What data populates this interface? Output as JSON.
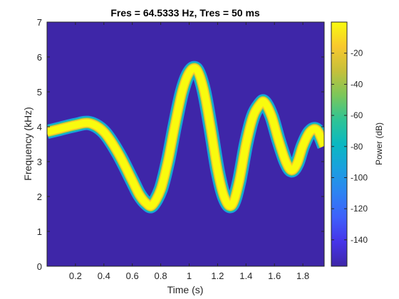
{
  "chart_data": {
    "type": "heatmap",
    "title": "Fres = 64.5333 Hz, Tres = 50 ms",
    "xlabel": "Time (s)",
    "ylabel": "Frequency (kHz)",
    "xlim": [
      0,
      1.95
    ],
    "ylim": [
      0,
      7
    ],
    "x_ticks": [
      0.2,
      0.4,
      0.6,
      0.8,
      1,
      1.2,
      1.4,
      1.6,
      1.8
    ],
    "x_tick_labels": [
      "0.2",
      "0.4",
      "0.6",
      "0.8",
      "1",
      "1.2",
      "1.4",
      "1.6",
      "1.8"
    ],
    "y_ticks": [
      0,
      1,
      2,
      3,
      4,
      5,
      6,
      7
    ],
    "y_tick_labels": [
      "0",
      "1",
      "2",
      "3",
      "4",
      "5",
      "6",
      "7"
    ],
    "colorbar": {
      "label": "Power (dB)",
      "range": [
        -157,
        0
      ],
      "ticks": [
        -140,
        -120,
        -100,
        -80,
        -60,
        -40,
        -20
      ],
      "tick_labels": [
        "-140",
        "-120",
        "-100",
        "-80",
        "-60",
        "-40",
        "-20"
      ],
      "colormap": "parula"
    },
    "grid": false,
    "background_color": "#3e26a8",
    "ridge": {
      "description_of_series": "dominant frequency track (kHz) vs time (s)",
      "t": [
        0,
        0.1,
        0.2,
        0.3,
        0.4,
        0.5,
        0.6,
        0.65,
        0.7,
        0.74,
        0.8,
        0.85,
        0.9,
        0.95,
        1.0,
        1.05,
        1.1,
        1.15,
        1.2,
        1.25,
        1.3,
        1.35,
        1.4,
        1.45,
        1.5,
        1.53,
        1.58,
        1.63,
        1.68,
        1.72,
        1.76,
        1.8,
        1.85,
        1.9,
        1.95
      ],
      "f": [
        3.85,
        3.95,
        4.05,
        4.1,
        3.85,
        3.25,
        2.45,
        2.05,
        1.8,
        1.75,
        2.2,
        3.0,
        4.05,
        5.0,
        5.55,
        5.65,
        5.1,
        4.0,
        2.75,
        1.95,
        1.75,
        2.4,
        3.5,
        4.3,
        4.65,
        4.7,
        4.3,
        3.6,
        3.0,
        2.75,
        2.95,
        3.45,
        3.85,
        3.9,
        3.45
      ]
    }
  }
}
